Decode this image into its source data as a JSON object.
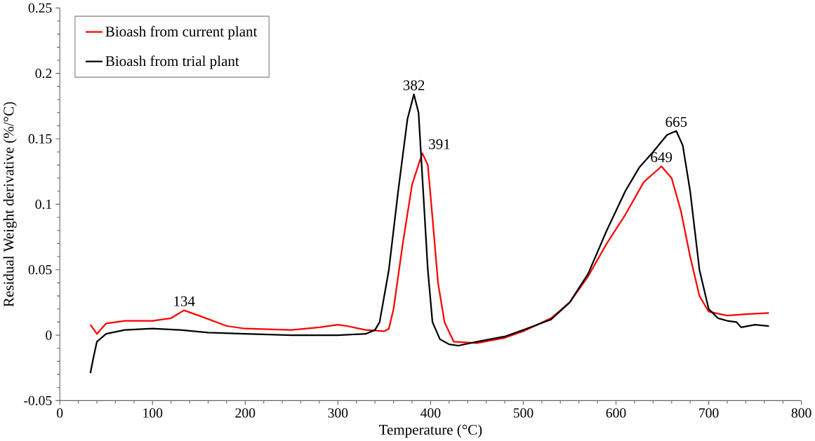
{
  "chart_data": {
    "type": "line",
    "xlabel": "Temperature (°C)",
    "ylabel": "Residual Weight derivative  (%/°C)",
    "xlim": [
      0,
      800
    ],
    "xticks": [
      0,
      100,
      200,
      300,
      400,
      500,
      600,
      700,
      800
    ],
    "ylim": [
      -0.05,
      0.25
    ],
    "yticks": [
      -0.05,
      0,
      0.05,
      0.1,
      0.15,
      0.2,
      0.25
    ],
    "grid": false,
    "legend": "top left",
    "marker": "none",
    "line_style": "solid",
    "series": [
      {
        "name": "Bioash from current plant",
        "color": "#ff0000",
        "x": [
          33,
          40,
          50,
          70,
          100,
          120,
          134,
          150,
          180,
          200,
          250,
          280,
          300,
          310,
          330,
          350,
          355,
          360,
          370,
          380,
          391,
          397,
          402,
          408,
          415,
          425,
          450,
          480,
          500,
          530,
          550,
          570,
          590,
          610,
          630,
          649,
          660,
          670,
          680,
          690,
          700,
          720,
          740,
          765
        ],
        "values": [
          0.008,
          0.001,
          0.009,
          0.011,
          0.011,
          0.013,
          0.019,
          0.015,
          0.007,
          0.005,
          0.004,
          0.006,
          0.008,
          0.007,
          0.004,
          0.003,
          0.005,
          0.02,
          0.07,
          0.115,
          0.139,
          0.13,
          0.09,
          0.04,
          0.01,
          -0.005,
          -0.006,
          -0.002,
          0.003,
          0.013,
          0.025,
          0.045,
          0.07,
          0.092,
          0.117,
          0.129,
          0.12,
          0.095,
          0.06,
          0.03,
          0.018,
          0.015,
          0.016,
          0.017
        ]
      },
      {
        "name": "Bioash from trial plant",
        "color": "#000000",
        "x": [
          33,
          36,
          40,
          50,
          70,
          100,
          130,
          160,
          200,
          250,
          300,
          330,
          340,
          345,
          355,
          365,
          375,
          382,
          387,
          392,
          397,
          402,
          410,
          420,
          430,
          450,
          480,
          500,
          530,
          550,
          570,
          590,
          610,
          625,
          640,
          655,
          665,
          672,
          680,
          690,
          700,
          710,
          720,
          730,
          735,
          750,
          765
        ],
        "values": [
          -0.029,
          -0.018,
          -0.005,
          0.001,
          0.004,
          0.005,
          0.004,
          0.002,
          0.001,
          0.0,
          0.0,
          0.001,
          0.004,
          0.01,
          0.05,
          0.11,
          0.165,
          0.184,
          0.17,
          0.11,
          0.05,
          0.01,
          -0.003,
          -0.007,
          -0.008,
          -0.005,
          -0.001,
          0.004,
          0.012,
          0.025,
          0.047,
          0.08,
          0.11,
          0.128,
          0.14,
          0.153,
          0.156,
          0.145,
          0.11,
          0.05,
          0.02,
          0.013,
          0.011,
          0.01,
          0.006,
          0.008,
          0.007
        ]
      }
    ],
    "annotations": [
      {
        "text": "134",
        "x": 134,
        "y": 0.019
      },
      {
        "text": "382",
        "x": 382,
        "y": 0.184
      },
      {
        "text": "391",
        "x": 391,
        "y": 0.139
      },
      {
        "text": "665",
        "x": 665,
        "y": 0.156
      },
      {
        "text": "649",
        "x": 649,
        "y": 0.129
      }
    ]
  }
}
